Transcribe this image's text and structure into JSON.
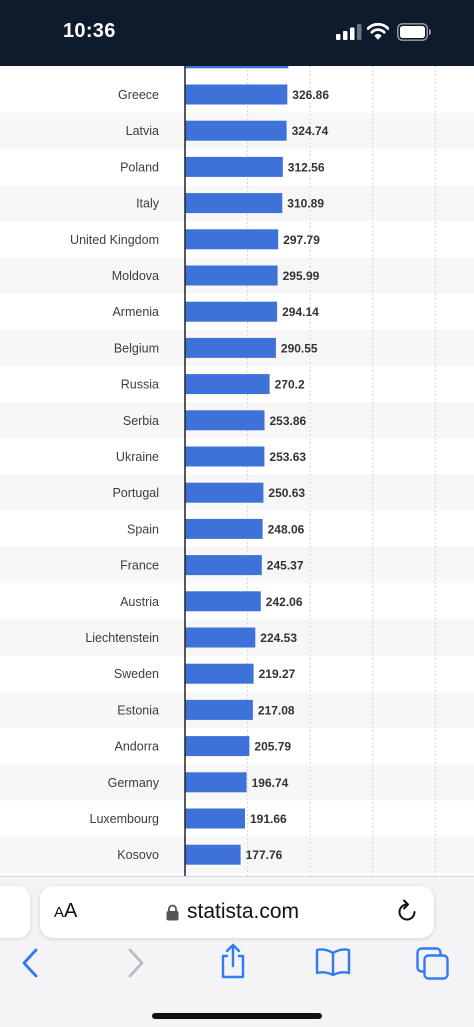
{
  "status_bar": {
    "time": "10:36"
  },
  "browser": {
    "text_size_label": "AA",
    "url": "statista.com"
  },
  "icons": {
    "signal": "cellular-signal-icon",
    "wifi": "wifi-icon",
    "battery": "battery-icon",
    "lock": "lock-icon",
    "reload": "reload-icon",
    "back": "chevron-left-icon",
    "forward": "chevron-right-icon",
    "share": "share-icon",
    "bookmarks": "open-book-icon",
    "tabs": "tabs-icon"
  },
  "colors": {
    "bar": "#3f72d8",
    "status_bar_bg": "#0e1b2c",
    "stripe": "#f7f7f7",
    "grid": "#d6d6d6",
    "axis": "#222222"
  },
  "chart_data": {
    "type": "bar",
    "orientation": "horizontal",
    "categories": [
      "Greece",
      "Latvia",
      "Poland",
      "Italy",
      "United Kingdom",
      "Moldova",
      "Armenia",
      "Belgium",
      "Russia",
      "Serbia",
      "Ukraine",
      "Portugal",
      "Spain",
      "France",
      "Austria",
      "Liechtenstein",
      "Sweden",
      "Estonia",
      "Andorra",
      "Germany",
      "Luxembourg",
      "Kosovo"
    ],
    "values": [
      326.86,
      324.74,
      312.56,
      310.89,
      297.79,
      295.99,
      294.14,
      290.55,
      270.2,
      253.86,
      253.63,
      250.63,
      248.06,
      245.37,
      242.06,
      224.53,
      219.27,
      217.08,
      205.79,
      196.74,
      191.66,
      177.76
    ],
    "value_labels": [
      "326.86",
      "324.74",
      "312.56",
      "310.89",
      "297.79",
      "295.99",
      "294.14",
      "290.55",
      "270.2",
      "253.86",
      "253.63",
      "250.63",
      "248.06",
      "245.37",
      "242.06",
      "224.53",
      "219.27",
      "217.08",
      "205.79",
      "196.74",
      "191.66",
      "177.76"
    ],
    "partial_bar_above_value": 330,
    "xlim": [
      0,
      800
    ],
    "gridlines": [
      200,
      400,
      600,
      800
    ],
    "grid": true,
    "data_labels": true,
    "striped_rows": true
  }
}
